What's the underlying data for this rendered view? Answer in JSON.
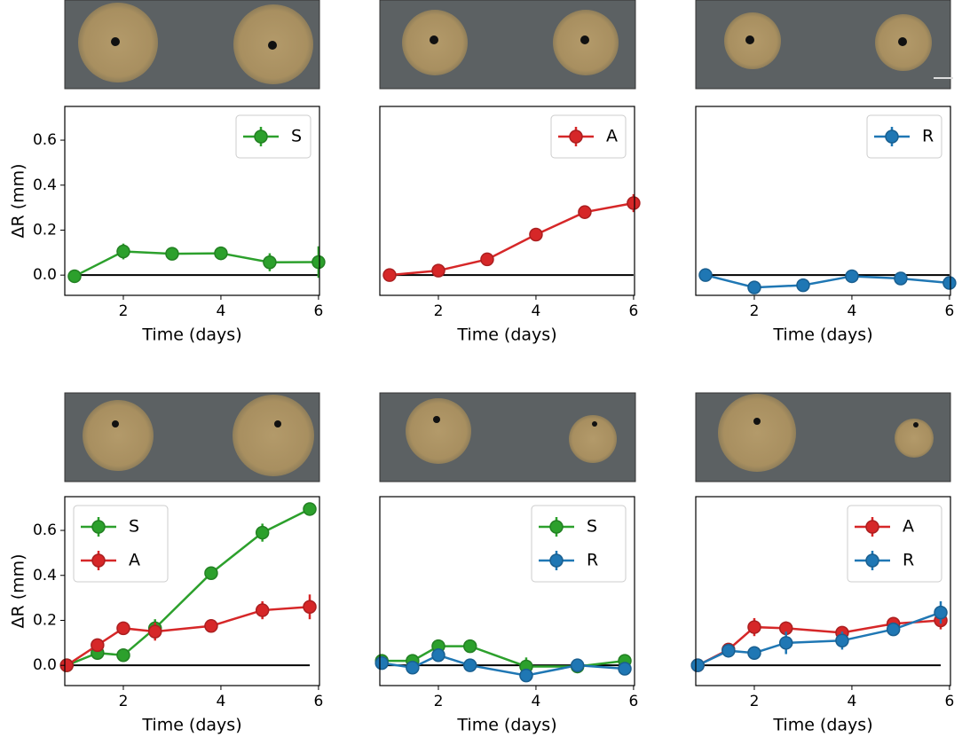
{
  "chart_data": [
    {
      "type": "line",
      "xlabel": "Time (days)",
      "ylabel": "ΔR (mm)",
      "xlim": [
        0.8,
        6.02
      ],
      "ylim": [
        -0.09,
        0.75
      ],
      "xticks": [
        2,
        4,
        6
      ],
      "yticks": [
        {
          "value": 0,
          "label": "0.0"
        },
        {
          "value": 0.2,
          "label": "0.2"
        },
        {
          "value": 0.4,
          "label": "0.4"
        },
        {
          "value": 0.6,
          "label": "0.6"
        }
      ],
      "hline": 0,
      "legend": "upper right",
      "x": [
        1,
        2,
        3,
        4,
        5,
        6
      ],
      "series": [
        {
          "name": "S",
          "color": "#2ca02c",
          "values": [
            -0.005,
            0.105,
            0.095,
            0.097,
            0.057,
            0.058
          ],
          "errors": [
            0.01,
            0.035,
            0.015,
            0.03,
            0.04,
            0.07
          ]
        }
      ]
    },
    {
      "type": "line",
      "xlabel": "Time (days)",
      "xlim": [
        0.8,
        6.02
      ],
      "ylim": [
        -0.09,
        0.75
      ],
      "xticks": [
        2,
        4,
        6
      ],
      "hline": 0,
      "legend": "upper right",
      "x": [
        1,
        2,
        3,
        4,
        5,
        6
      ],
      "series": [
        {
          "name": "A",
          "color": "#d62728",
          "values": [
            0,
            0.02,
            0.07,
            0.18,
            0.28,
            0.32
          ],
          "errors": [
            0.01,
            0.02,
            0.015,
            0.015,
            0.03,
            0.04
          ]
        }
      ]
    },
    {
      "type": "line",
      "xlabel": "Time (days)",
      "xlim": [
        0.8,
        6.02
      ],
      "ylim": [
        -0.09,
        0.75
      ],
      "xticks": [
        2,
        4,
        6
      ],
      "hline": 0,
      "legend": "upper right",
      "x": [
        1,
        2,
        3,
        4,
        5,
        6
      ],
      "series": [
        {
          "name": "R",
          "color": "#1f77b4",
          "values": [
            0,
            -0.055,
            -0.045,
            -0.005,
            -0.015,
            -0.035
          ],
          "errors": [
            0.01,
            0.01,
            0.01,
            0.012,
            0.01,
            0.01
          ]
        }
      ]
    },
    {
      "type": "line",
      "xlabel": "Time (days)",
      "ylabel": "ΔR (mm)",
      "xlim": [
        0.8,
        6.02
      ],
      "ylim": [
        -0.09,
        0.75
      ],
      "xticks": [
        2,
        4,
        6
      ],
      "yticks": [
        {
          "value": 0,
          "label": "0.0"
        },
        {
          "value": 0.2,
          "label": "0.2"
        },
        {
          "value": 0.4,
          "label": "0.4"
        },
        {
          "value": 0.6,
          "label": "0.6"
        }
      ],
      "hline": 0,
      "legend": "upper left",
      "x": [
        0.84,
        1.47,
        2.0,
        2.65,
        3.8,
        4.85,
        5.82
      ],
      "series": [
        {
          "name": "S",
          "color": "#2ca02c",
          "values": [
            0,
            0.055,
            0.045,
            0.165,
            0.41,
            0.59,
            0.695
          ],
          "errors": [
            0.01,
            0.03,
            0.02,
            0.04,
            0.015,
            0.04,
            0.01
          ]
        },
        {
          "name": "A",
          "color": "#d62728",
          "values": [
            0,
            0.09,
            0.165,
            0.15,
            0.175,
            0.245,
            0.26
          ],
          "errors": [
            0.01,
            0.02,
            0.015,
            0.04,
            0.015,
            0.04,
            0.055
          ]
        }
      ]
    },
    {
      "type": "line",
      "xlabel": "Time (days)",
      "xlim": [
        0.8,
        6.02
      ],
      "ylim": [
        -0.09,
        0.75
      ],
      "xticks": [
        2,
        4,
        6
      ],
      "hline": 0,
      "legend": "upper right",
      "x": [
        0.84,
        1.47,
        2.0,
        2.65,
        3.8,
        4.85,
        5.82
      ],
      "series": [
        {
          "name": "S",
          "color": "#2ca02c",
          "values": [
            0.02,
            0.02,
            0.085,
            0.085,
            -0.005,
            -0.005,
            0.02
          ],
          "errors": [
            0.01,
            0.02,
            0.03,
            0.02,
            0.04,
            0.03,
            0.02
          ]
        },
        {
          "name": "R",
          "color": "#1f77b4",
          "values": [
            0.01,
            -0.01,
            0.045,
            0,
            -0.045,
            0,
            -0.015
          ],
          "errors": [
            0.01,
            0.01,
            0.02,
            0.01,
            0.02,
            0.01,
            0.01
          ]
        }
      ]
    },
    {
      "type": "line",
      "xlabel": "Time (days)",
      "xlim": [
        0.8,
        6.02
      ],
      "ylim": [
        -0.09,
        0.75
      ],
      "xticks": [
        2,
        4,
        6
      ],
      "hline": 0,
      "legend": "upper right",
      "x": [
        0.84,
        1.47,
        2.0,
        2.65,
        3.8,
        4.85,
        5.82
      ],
      "series": [
        {
          "name": "A",
          "color": "#d62728",
          "values": [
            0,
            0.07,
            0.17,
            0.165,
            0.145,
            0.185,
            0.2
          ],
          "errors": [
            0.01,
            0.02,
            0.04,
            0.03,
            0.02,
            0.02,
            0.04
          ]
        },
        {
          "name": "R",
          "color": "#1f77b4",
          "values": [
            0,
            0.065,
            0.055,
            0.1,
            0.11,
            0.16,
            0.235
          ],
          "errors": [
            0.01,
            0.03,
            0.03,
            0.05,
            0.04,
            0.02,
            0.05
          ]
        }
      ]
    }
  ]
}
